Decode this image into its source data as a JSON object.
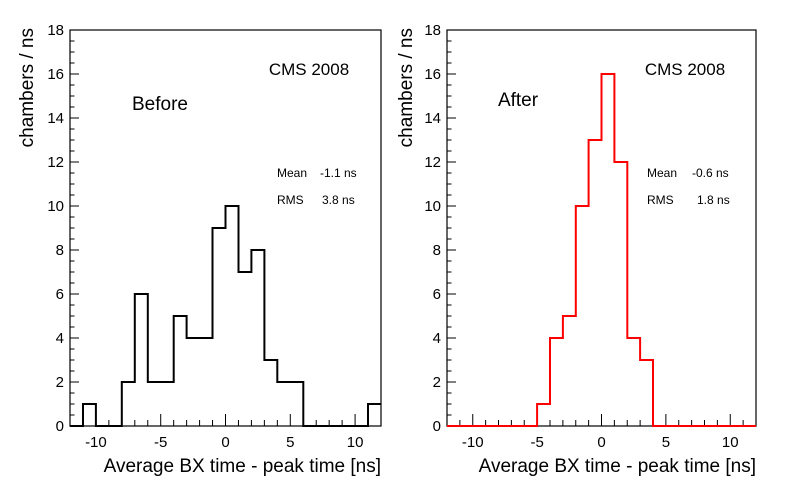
{
  "chart_data": [
    {
      "type": "histogram",
      "panel": "left",
      "title": "CMS 2008",
      "label": "Before",
      "xlabel": "Average BX time - peak time [ns]",
      "ylabel": "chambers / ns",
      "xlim": [
        -12,
        12
      ],
      "ylim": [
        0,
        18
      ],
      "xticks": [
        -10,
        -5,
        0,
        5,
        10
      ],
      "yticks": [
        0,
        2,
        4,
        6,
        8,
        10,
        12,
        14,
        16,
        18
      ],
      "color": "#000000",
      "bin_width": 1,
      "bin_edges_start": -12,
      "values": [
        0,
        1,
        0,
        0,
        2,
        6,
        2,
        2,
        5,
        4,
        4,
        9,
        10,
        7,
        8,
        3,
        2,
        2,
        0,
        0,
        0,
        0,
        0,
        1
      ],
      "stats": {
        "mean_label": "Mean",
        "mean_value": "-1.1 ns",
        "rms_label": "RMS",
        "rms_value": "3.8 ns"
      }
    },
    {
      "type": "histogram",
      "panel": "right",
      "title": "CMS 2008",
      "label": "After",
      "xlabel": "Average BX time - peak time [ns]",
      "ylabel": "chambers / ns",
      "xlim": [
        -12,
        12
      ],
      "ylim": [
        0,
        18
      ],
      "xticks": [
        -10,
        -5,
        0,
        5,
        10
      ],
      "yticks": [
        0,
        2,
        4,
        6,
        8,
        10,
        12,
        14,
        16,
        18
      ],
      "color": "#ff0000",
      "bin_width": 1,
      "bin_edges_start": -12,
      "values": [
        0,
        0,
        0,
        0,
        0,
        0,
        0,
        1,
        4,
        5,
        10,
        13,
        16,
        12,
        4,
        3,
        0,
        0,
        0,
        0,
        0,
        0,
        0,
        0
      ],
      "stats": {
        "mean_label": "Mean",
        "mean_value": "-0.6 ns",
        "rms_label": "RMS",
        "rms_value": "1.8 ns"
      }
    }
  ]
}
